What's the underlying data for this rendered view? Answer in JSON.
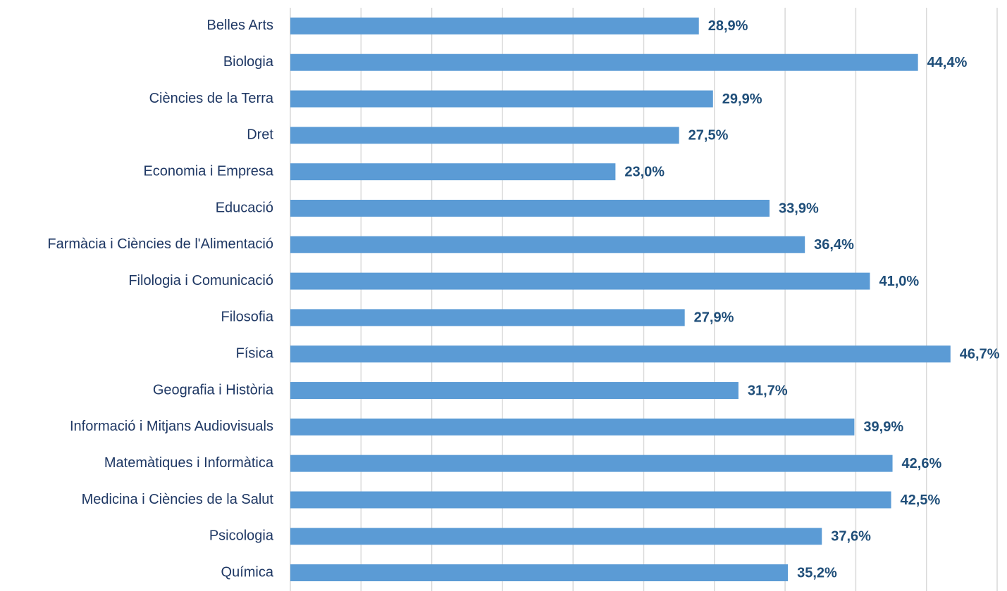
{
  "chart_data": {
    "type": "bar",
    "orientation": "horizontal",
    "categories": [
      "Belles Arts",
      "Biologia",
      "Ciències de la Terra",
      "Dret",
      "Economia i Empresa",
      "Educació",
      "Farmàcia i Ciències de l'Alimentació",
      "Filologia i Comunicació",
      "Filosofia",
      "Física",
      "Geografia i Història",
      "Informació i Mitjans Audiovisuals",
      "Matemàtiques i Informàtica",
      "Medicina i Ciències de la Salut",
      "Psicologia",
      "Química"
    ],
    "values": [
      28.9,
      44.4,
      29.9,
      27.5,
      23.0,
      33.9,
      36.4,
      41.0,
      27.9,
      46.7,
      31.7,
      39.9,
      42.6,
      42.5,
      37.6,
      35.2
    ],
    "value_labels": [
      "28,9%",
      "44,4%",
      "29,9%",
      "27,5%",
      "23,0%",
      "33,9%",
      "36,4%",
      "41,0%",
      "27,9%",
      "46,7%",
      "31,7%",
      "39,9%",
      "42,6%",
      "42,5%",
      "37,6%",
      "35,2%"
    ],
    "color": "#5b9bd5",
    "xlim": [
      0,
      50
    ],
    "xticks": [
      0,
      5,
      10,
      15,
      20,
      25,
      30,
      35,
      40,
      45,
      50
    ],
    "grid": true
  }
}
